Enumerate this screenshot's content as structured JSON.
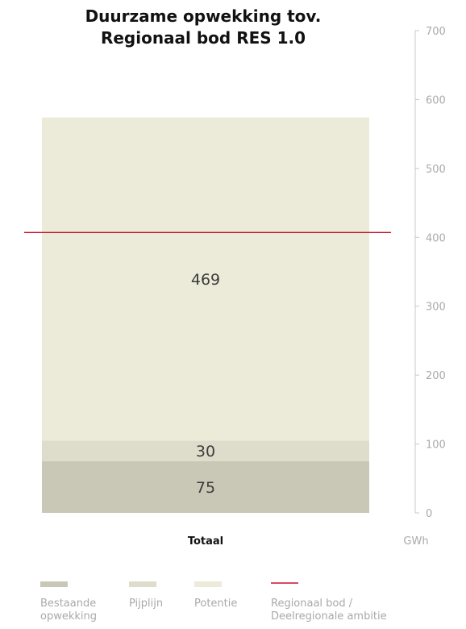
{
  "chart_data": {
    "type": "bar",
    "stacked": true,
    "title_lines": [
      "Duurzame opwekking tov.",
      "Regionaal bod RES 1.0"
    ],
    "categories": [
      "Totaal"
    ],
    "series": [
      {
        "name": "Bestaande opwekking",
        "values": [
          75
        ],
        "color": "#c9c8b7"
      },
      {
        "name": "Pijplijn",
        "values": [
          30
        ],
        "color": "#deddcc"
      },
      {
        "name": "Potentie",
        "values": [
          469
        ],
        "color": "#ecebda"
      }
    ],
    "reference_line": {
      "name": "Regionaal bod / Deelregionale ambitie",
      "value": 407,
      "color": "#c8102e"
    },
    "ylim": [
      0,
      700
    ],
    "y_ticks": [
      0,
      100,
      200,
      300,
      400,
      500,
      600,
      700
    ],
    "y_axis_position": "right",
    "unit": "GWh",
    "legend": {
      "position": "bottom",
      "items": [
        {
          "lines": [
            "Bestaande",
            "opwekking"
          ],
          "color": "#c9c8b7",
          "shape": "bar"
        },
        {
          "lines": [
            "Pijplijn"
          ],
          "color": "#deddcc",
          "shape": "bar"
        },
        {
          "lines": [
            "Potentie"
          ],
          "color": "#ecebda",
          "shape": "bar"
        },
        {
          "lines": [
            "Regionaal bod /",
            "Deelregionale ambitie"
          ],
          "color": "#c8102e",
          "shape": "line"
        }
      ]
    }
  }
}
